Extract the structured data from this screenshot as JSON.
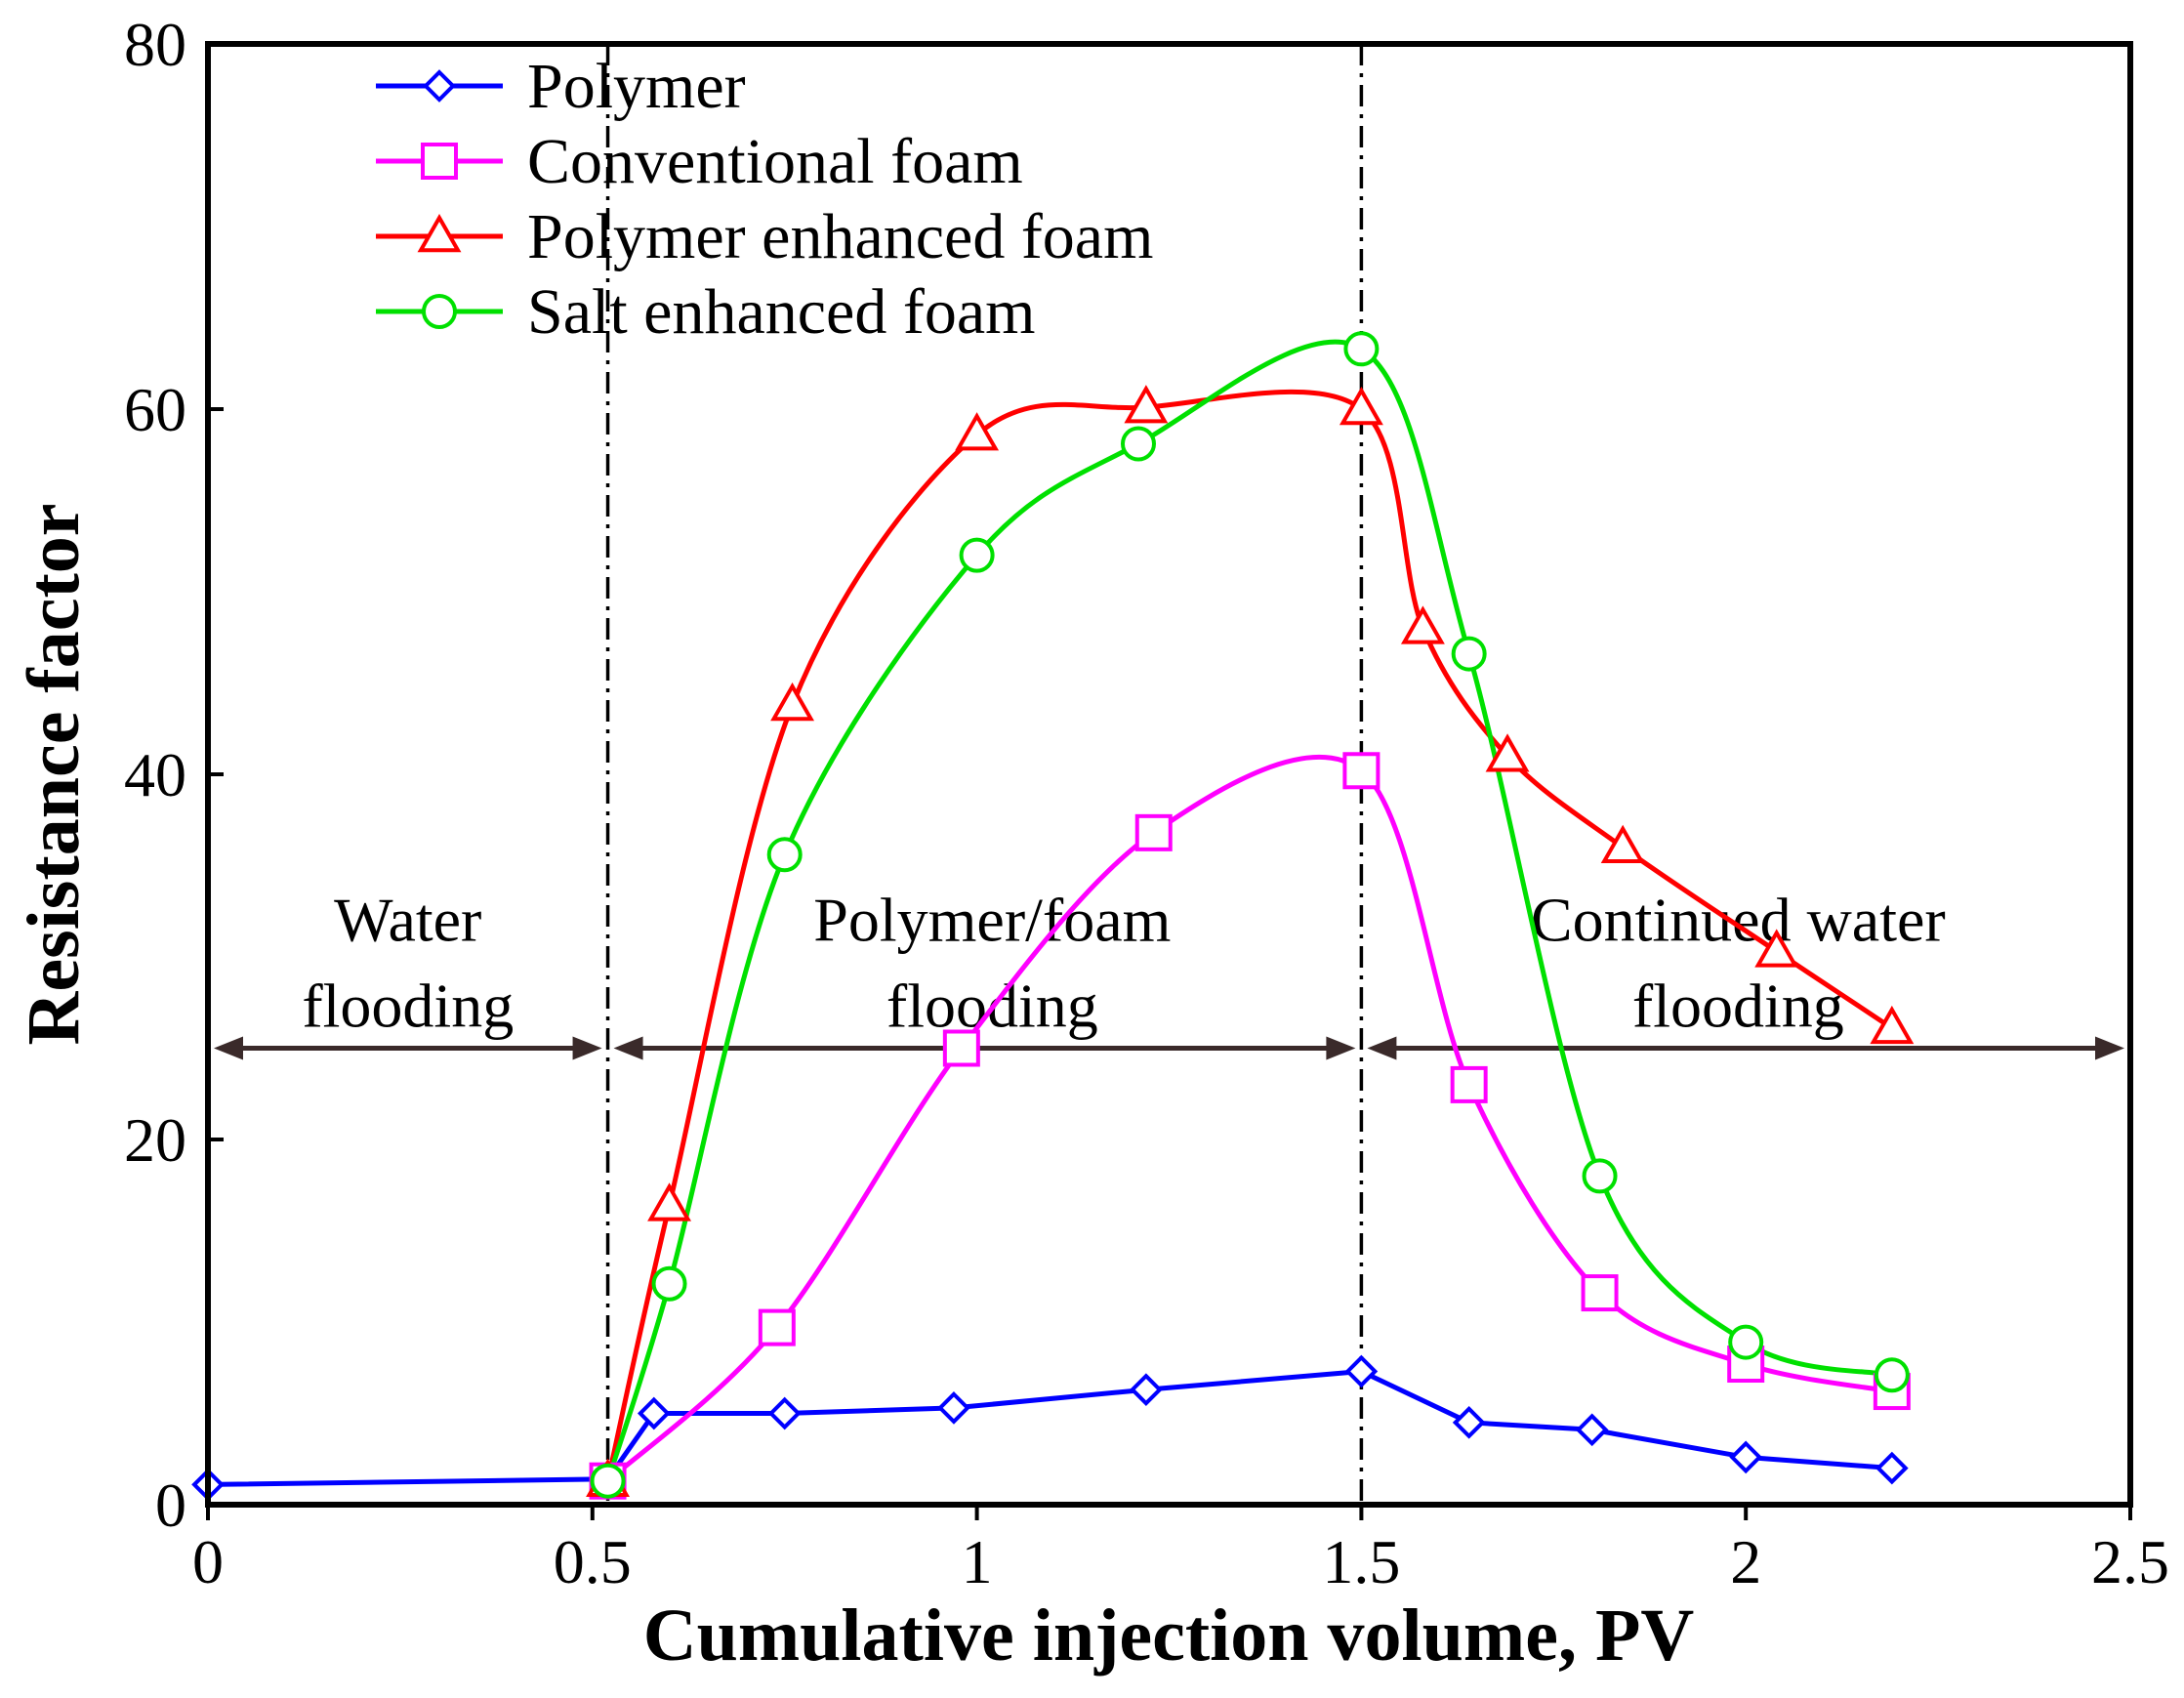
{
  "chart_data": {
    "type": "line",
    "title": "",
    "xlabel": "Cumulative injection volume, PV",
    "ylabel": "Resistance factor",
    "xlim": [
      0,
      2.5
    ],
    "ylim": [
      0,
      80
    ],
    "xticks": [
      0,
      0.5,
      1,
      1.5,
      2,
      2.5
    ],
    "xtick_labels": [
      "0",
      "0.5",
      "1",
      "1.5",
      "2",
      "2.5"
    ],
    "yticks": [
      0,
      20,
      40,
      60,
      80
    ],
    "ytick_labels": [
      "0",
      "20",
      "40",
      "60",
      "80"
    ],
    "legend_position": "top-left",
    "grid": false,
    "series": [
      {
        "name": "Polymer",
        "color": "#0000ff",
        "marker": "diamond",
        "x": [
          0,
          0.52,
          0.58,
          0.75,
          0.97,
          1.22,
          1.5,
          1.64,
          1.8,
          2.0,
          2.19
        ],
        "y": [
          1.1,
          1.4,
          5.0,
          5.0,
          5.3,
          6.3,
          7.3,
          4.5,
          4.1,
          2.6,
          2.0
        ]
      },
      {
        "name": "Conventional foam",
        "color": "#ff00ff",
        "marker": "square",
        "x": [
          0.52,
          0.74,
          0.98,
          1.23,
          1.5,
          1.64,
          1.81,
          2.0,
          2.19
        ],
        "y": [
          1.3,
          9.7,
          25.0,
          36.8,
          40.2,
          23.0,
          11.6,
          7.7,
          6.2
        ]
      },
      {
        "name": "Polymer enhanced foam",
        "color": "#ff0000",
        "marker": "triangle",
        "x": [
          0.52,
          0.6,
          0.76,
          1.0,
          1.22,
          1.5,
          1.58,
          1.69,
          1.84,
          2.04,
          2.19
        ],
        "y": [
          1.3,
          16.4,
          43.8,
          58.6,
          60.1,
          60.0,
          48.0,
          41.0,
          36.0,
          30.3,
          26.1
        ]
      },
      {
        "name": "Salt enhanced foam",
        "color": "#00e000",
        "marker": "circle",
        "x": [
          0.52,
          0.6,
          0.75,
          1.0,
          1.21,
          1.5,
          1.64,
          1.81,
          2.0,
          2.19
        ],
        "y": [
          1.3,
          12.1,
          35.6,
          52.0,
          58.1,
          63.3,
          46.6,
          18.0,
          8.9,
          7.1
        ]
      }
    ],
    "divider_lines_x": [
      0.52,
      1.5
    ],
    "regions": [
      {
        "line1": "Water",
        "line2": "flooding",
        "x_from": 0,
        "x_to": 0.52,
        "label_x": 0.26
      },
      {
        "line1": "Polymer/foam",
        "line2": "flooding",
        "x_from": 0.52,
        "x_to": 1.5,
        "label_x": 1.02
      },
      {
        "line1": "Continued water",
        "line2": "flooding",
        "x_from": 1.5,
        "x_to": 2.5,
        "label_x": 1.99
      }
    ],
    "region_arrow_y": 25
  }
}
